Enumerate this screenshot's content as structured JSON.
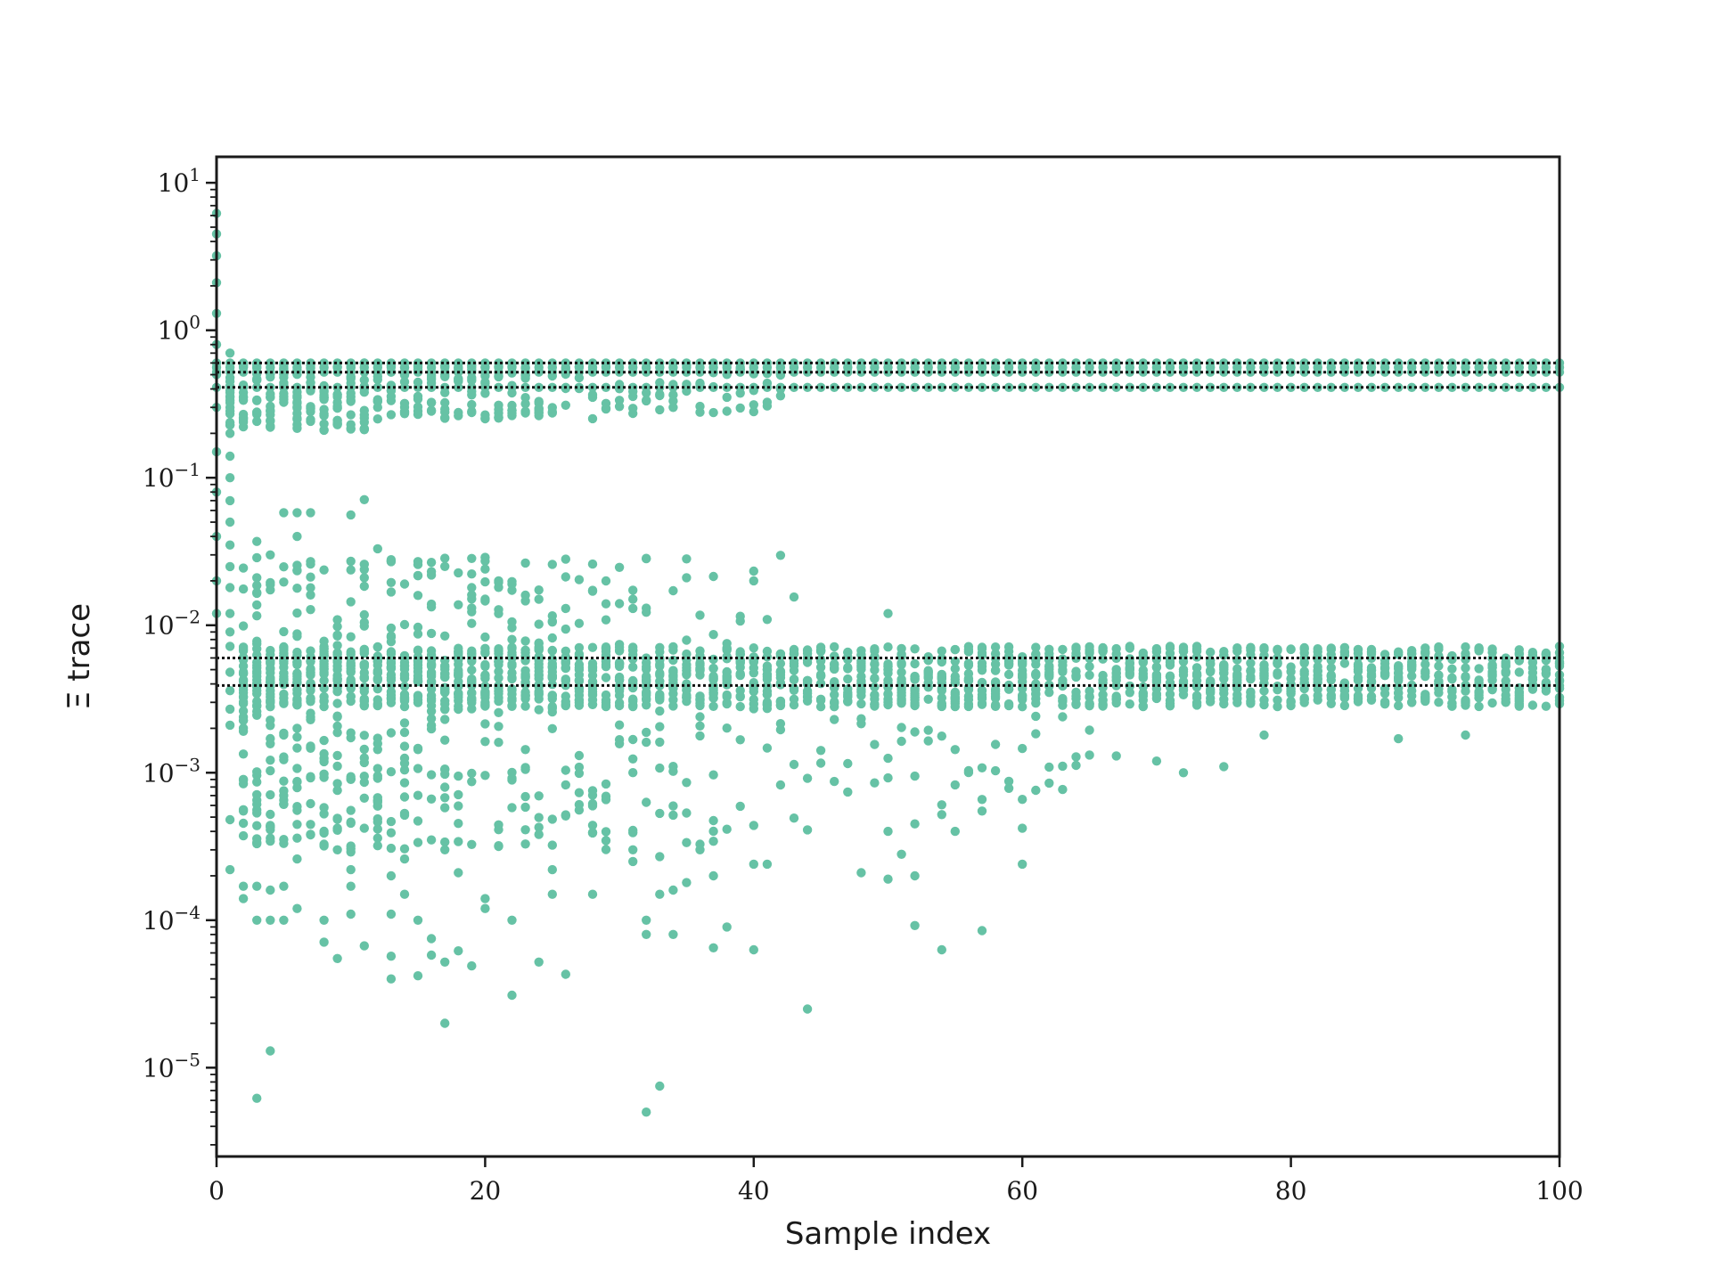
{
  "chart_data": {
    "type": "scatter",
    "title": "",
    "xlabel": "Sample index",
    "ylabel": "Ξ trace",
    "xlim": [
      0,
      100
    ],
    "ylim": [
      2.5e-06,
      15
    ],
    "yscale": "log",
    "x_ticks": [
      0,
      20,
      40,
      60,
      80,
      100
    ],
    "x_tick_labels": [
      "0",
      "20",
      "40",
      "60",
      "80",
      "100"
    ],
    "y_ticks": [
      1e-05,
      0.0001,
      0.001,
      0.01,
      0.1,
      1,
      10
    ],
    "y_tick_labels": [
      {
        "base": "10",
        "exp": "−5"
      },
      {
        "base": "10",
        "exp": "−4"
      },
      {
        "base": "10",
        "exp": "−3"
      },
      {
        "base": "10",
        "exp": "−2"
      },
      {
        "base": "10",
        "exp": "−1"
      },
      {
        "base": "10",
        "exp": "0"
      },
      {
        "base": "10",
        "exp": "1"
      }
    ],
    "grid": false,
    "legend": null,
    "marker_color": "#66c2a5",
    "reference_line_color": "#111111",
    "reference_lines_y": [
      0.6,
      0.52,
      0.41,
      0.006,
      0.0039
    ],
    "series": [
      {
        "points": [
          [
            0,
            6.2
          ],
          [
            0,
            4.5
          ],
          [
            0,
            3.2
          ],
          [
            0,
            2.1
          ],
          [
            0,
            1.3
          ],
          [
            0,
            0.8
          ],
          [
            0,
            0.5
          ],
          [
            0,
            0.3
          ],
          [
            0,
            0.15
          ],
          [
            0,
            0.08
          ],
          [
            0,
            0.04
          ],
          [
            0,
            0.02
          ],
          [
            0,
            0.012
          ],
          [
            1,
            0.7
          ],
          [
            1,
            0.45
          ],
          [
            1,
            0.3
          ],
          [
            1,
            0.2
          ],
          [
            1,
            0.14
          ],
          [
            1,
            0.1
          ],
          [
            1,
            0.07
          ],
          [
            1,
            0.05
          ],
          [
            1,
            0.035
          ],
          [
            1,
            0.025
          ],
          [
            1,
            0.018
          ],
          [
            1,
            0.012
          ],
          [
            1,
            0.009
          ],
          [
            1,
            0.0072
          ],
          [
            1,
            0.0048
          ],
          [
            1,
            0.0036
          ],
          [
            1,
            0.0027
          ],
          [
            1,
            0.0021
          ],
          [
            1,
            0.00048
          ],
          [
            1,
            0.00022
          ],
          [
            2,
            0.00055
          ],
          [
            2,
            0.00017
          ],
          [
            2,
            0.00014
          ],
          [
            3,
            0.037
          ],
          [
            3,
            0.021
          ],
          [
            3,
            0.00096
          ],
          [
            3,
            0.00071
          ],
          [
            3,
            0.00056
          ],
          [
            3,
            0.00017
          ],
          [
            3,
            0.0001
          ],
          [
            3,
            6.2e-06
          ],
          [
            4,
            0.22
          ],
          [
            4,
            0.03
          ],
          [
            4,
            0.00043
          ],
          [
            4,
            0.00036
          ],
          [
            4,
            0.00016
          ],
          [
            4,
            0.0001
          ],
          [
            4,
            1.3e-05
          ],
          [
            5,
            0.058
          ],
          [
            5,
            0.00061
          ],
          [
            5,
            0.00017
          ],
          [
            5,
            0.0001
          ],
          [
            6,
            0.058
          ],
          [
            6,
            0.04
          ],
          [
            6,
            0.00059
          ],
          [
            6,
            0.00036
          ],
          [
            6,
            0.00026
          ],
          [
            6,
            0.00012
          ],
          [
            7,
            0.058
          ],
          [
            7,
            0.026
          ],
          [
            8,
            0.0001
          ],
          [
            8,
            7.1e-05
          ],
          [
            9,
            0.00042
          ],
          [
            9,
            5.5e-05
          ],
          [
            10,
            0.056
          ],
          [
            10,
            0.00029
          ],
          [
            10,
            0.00022
          ],
          [
            10,
            0.00017
          ],
          [
            10,
            0.00011
          ],
          [
            11,
            0.071
          ],
          [
            11,
            0.00042
          ],
          [
            11,
            6.7e-05
          ],
          [
            12,
            0.033
          ],
          [
            12,
            0.00036
          ],
          [
            12,
            0.00032
          ],
          [
            13,
            0.0002
          ],
          [
            13,
            0.00011
          ],
          [
            13,
            5.7e-05
          ],
          [
            13,
            4e-05
          ],
          [
            14,
            0.00026
          ],
          [
            14,
            0.00015
          ],
          [
            15,
            0.027
          ],
          [
            15,
            0.0001
          ],
          [
            15,
            4.2e-05
          ],
          [
            16,
            7.5e-05
          ],
          [
            16,
            5.8e-05
          ],
          [
            17,
            0.0003
          ],
          [
            17,
            5.2e-05
          ],
          [
            17,
            2e-05
          ],
          [
            18,
            0.00021
          ],
          [
            18,
            6.2e-05
          ],
          [
            19,
            4.9e-05
          ],
          [
            20,
            0.00014
          ],
          [
            20,
            0.00012
          ],
          [
            21,
            0.02
          ],
          [
            21,
            0.00032
          ],
          [
            22,
            0.019
          ],
          [
            22,
            0.0001
          ],
          [
            22,
            3.1e-05
          ],
          [
            23,
            0.016
          ],
          [
            24,
            0.015
          ],
          [
            24,
            5.2e-05
          ],
          [
            25,
            0.00022
          ],
          [
            25,
            0.00015
          ],
          [
            26,
            0.013
          ],
          [
            26,
            4.3e-05
          ],
          [
            28,
            0.017
          ],
          [
            28,
            0.00015
          ],
          [
            31,
            0.015
          ],
          [
            31,
            0.013
          ],
          [
            31,
            0.0003
          ],
          [
            31,
            0.00025
          ],
          [
            32,
            0.0001
          ],
          [
            32,
            8e-05
          ],
          [
            32,
            5e-06
          ],
          [
            33,
            0.00027
          ],
          [
            33,
            0.00015
          ],
          [
            33,
            7.5e-06
          ],
          [
            34,
            0.00016
          ],
          [
            34,
            8e-05
          ],
          [
            35,
            0.00018
          ],
          [
            36,
            0.0003
          ],
          [
            37,
            0.0002
          ],
          [
            37,
            6.5e-05
          ],
          [
            38,
            9e-05
          ],
          [
            40,
            0.00024
          ],
          [
            40,
            6.3e-05
          ],
          [
            41,
            0.00024
          ],
          [
            44,
            2.5e-05
          ],
          [
            48,
            0.00021
          ],
          [
            50,
            0.012
          ],
          [
            50,
            0.0004
          ],
          [
            50,
            0.00019
          ],
          [
            51,
            0.00028
          ],
          [
            52,
            0.00045
          ],
          [
            52,
            0.0002
          ],
          [
            52,
            9.2e-05
          ],
          [
            54,
            0.00052
          ],
          [
            54,
            6.3e-05
          ],
          [
            55,
            0.0004
          ],
          [
            57,
            0.00055
          ],
          [
            57,
            8.5e-05
          ],
          [
            60,
            0.00042
          ],
          [
            60,
            0.00024
          ],
          [
            61,
            0.00076
          ],
          [
            63,
            0.00077
          ],
          [
            67,
            0.0013
          ],
          [
            70,
            0.0012
          ],
          [
            72,
            0.001
          ],
          [
            75,
            0.0011
          ],
          [
            78,
            0.0018
          ],
          [
            88,
            0.0017
          ],
          [
            93,
            0.0018
          ]
        ]
      }
    ],
    "bands": {
      "upper_dense": [
        0.41,
        0.6
      ],
      "lower_dense": [
        0.0028,
        0.0072
      ]
    }
  }
}
